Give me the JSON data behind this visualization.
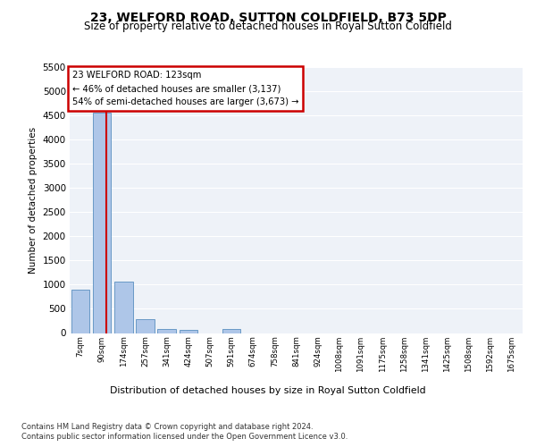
{
  "title": "23, WELFORD ROAD, SUTTON COLDFIELD, B73 5DP",
  "subtitle": "Size of property relative to detached houses in Royal Sutton Coldfield",
  "xlabel": "Distribution of detached houses by size in Royal Sutton Coldfield",
  "ylabel": "Number of detached properties",
  "footnote1": "Contains HM Land Registry data © Crown copyright and database right 2024.",
  "footnote2": "Contains public sector information licensed under the Open Government Licence v3.0.",
  "annotation_line1": "23 WELFORD ROAD: 123sqm",
  "annotation_line2": "← 46% of detached houses are smaller (3,137)",
  "annotation_line3": "54% of semi-detached houses are larger (3,673) →",
  "categories": [
    "7sqm",
    "90sqm",
    "174sqm",
    "257sqm",
    "341sqm",
    "424sqm",
    "507sqm",
    "591sqm",
    "674sqm",
    "758sqm",
    "841sqm",
    "924sqm",
    "1008sqm",
    "1091sqm",
    "1175sqm",
    "1258sqm",
    "1341sqm",
    "1425sqm",
    "1508sqm",
    "1592sqm",
    "1675sqm"
  ],
  "values": [
    900,
    4560,
    1060,
    290,
    75,
    60,
    0,
    75,
    0,
    0,
    0,
    0,
    0,
    0,
    0,
    0,
    0,
    0,
    0,
    0,
    0
  ],
  "bar_color": "#aec6e8",
  "bar_edge_color": "#5a8fc0",
  "vline_color": "#cc0000",
  "vline_x": 1.2,
  "ylim": [
    0,
    5500
  ],
  "yticks": [
    0,
    500,
    1000,
    1500,
    2000,
    2500,
    3000,
    3500,
    4000,
    4500,
    5000,
    5500
  ],
  "annotation_box_color": "#cc0000",
  "bg_color": "#eef2f8",
  "grid_color": "#ffffff",
  "title_fontsize": 10,
  "subtitle_fontsize": 8.5
}
